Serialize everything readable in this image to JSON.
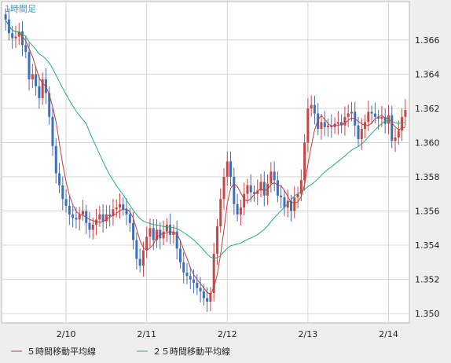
{
  "chart_data": {
    "type": "candlestick",
    "timeframe_label": "1時間足",
    "ylim": [
      1.3495,
      1.3682
    ],
    "y_ticks": [
      "1.366",
      "1.364",
      "1.362",
      "1.360",
      "1.358",
      "1.356",
      "1.354",
      "1.352",
      "1.350"
    ],
    "x_tick_labels": [
      "2/10",
      "2/11",
      "2/12",
      "2/13",
      "2/14"
    ],
    "x_tick_index": [
      18,
      42,
      66,
      90,
      114
    ],
    "grid": true,
    "legend_position": "bottom-left",
    "colors": {
      "up": "#cc4444",
      "down": "#3f6fb5",
      "ma5": "#c33c3c",
      "ma25": "#22aa88",
      "grid": "#d6d6d6",
      "plot_bg": "#ffffff",
      "axis_text": "#222222",
      "timeframe_label": "#35a0c8"
    },
    "series": [
      {
        "name": "５時間移動平均線",
        "color": "#c33c3c",
        "period": 5
      },
      {
        "name": "２５時間移動平均線",
        "color": "#22aa88",
        "period": 25
      }
    ],
    "closes": [
      1.3672,
      1.3664,
      1.3661,
      1.3662,
      1.3665,
      1.3657,
      1.3653,
      1.3637,
      1.364,
      1.3633,
      1.3626,
      1.3637,
      1.3629,
      1.3615,
      1.3598,
      1.3582,
      1.3575,
      1.3567,
      1.3563,
      1.3558,
      1.3556,
      1.3555,
      1.3558,
      1.356,
      1.3553,
      1.3549,
      1.3552,
      1.3555,
      1.3558,
      1.3554,
      1.3558,
      1.3557,
      1.3561,
      1.3562,
      1.3564,
      1.3561,
      1.3558,
      1.3553,
      1.3543,
      1.3532,
      1.3528,
      1.3537,
      1.3545,
      1.355,
      1.3543,
      1.3549,
      1.3544,
      1.3548,
      1.3552,
      1.3546,
      1.3548,
      1.3538,
      1.353,
      1.3524,
      1.3522,
      1.352,
      1.3518,
      1.3515,
      1.3513,
      1.3509,
      1.3507,
      1.3512,
      1.3535,
      1.3551,
      1.3567,
      1.358,
      1.3589,
      1.358,
      1.3564,
      1.3558,
      1.3562,
      1.357,
      1.3575,
      1.3571,
      1.357,
      1.3572,
      1.3577,
      1.3569,
      1.3576,
      1.3583,
      1.3578,
      1.3569,
      1.3568,
      1.3562,
      1.3566,
      1.356,
      1.3568,
      1.357,
      1.3578,
      1.36,
      1.362,
      1.3622,
      1.3617,
      1.3608,
      1.3612,
      1.3609,
      1.361,
      1.3609,
      1.3611,
      1.3612,
      1.361,
      1.3615,
      1.3617,
      1.3618,
      1.361,
      1.3602,
      1.3608,
      1.3612,
      1.3618,
      1.3617,
      1.3615,
      1.3614,
      1.3615,
      1.3611,
      1.3616,
      1.3601,
      1.3603,
      1.3607,
      1.3615,
      1.3619
    ]
  }
}
